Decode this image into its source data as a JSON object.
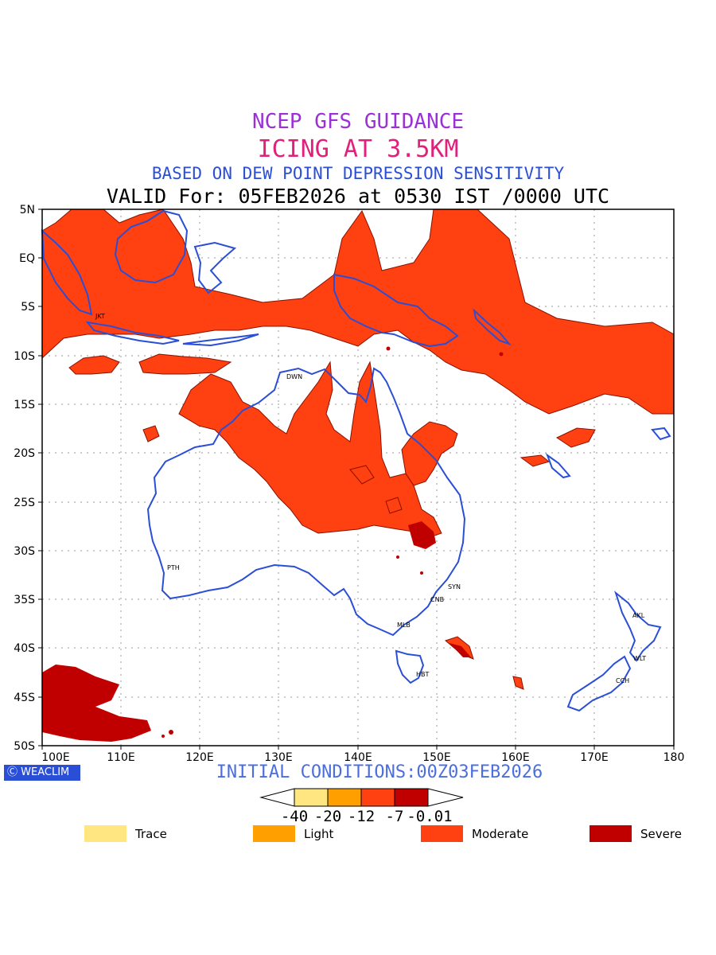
{
  "titles": {
    "line1": "NCEP GFS GUIDANCE",
    "line2": "ICING AT 3.5KM",
    "line3": "BASED ON DEW POINT DEPRESSION SENSITIVITY",
    "line4": "VALID For: 05FEB2026 at 0530 IST /0000 UTC",
    "line1_color": "#9b30d9",
    "line2_color": "#e0207a",
    "line3_color": "#2a4fd6"
  },
  "axes": {
    "lat_labels": [
      "5N",
      "EQ",
      "5S",
      "10S",
      "15S",
      "20S",
      "25S",
      "30S",
      "35S",
      "40S",
      "45S",
      "50S"
    ],
    "lon_labels": [
      "100E",
      "110E",
      "120E",
      "130E",
      "140E",
      "150E",
      "160E",
      "170E",
      "180"
    ]
  },
  "cities": [
    "JKT",
    "DWN",
    "PTH",
    "SYN",
    "CNB",
    "MLB",
    "HBT",
    "AKL",
    "WLT",
    "CCH"
  ],
  "footer": {
    "logo": "WEACLIM",
    "initial_conditions": "INITIAL CONDITIONS:00Z03FEB2026",
    "init_color": "#4a6ee0"
  },
  "colorbar": {
    "ticks": [
      "-40",
      "-20",
      "-12",
      "-7",
      "-0.01"
    ],
    "colors": [
      "#ffe680",
      "#ffa000",
      "#ff4010",
      "#c00000"
    ]
  },
  "legend": [
    {
      "label": "Trace",
      "color": "#ffe680"
    },
    {
      "label": "Light",
      "color": "#ffa000"
    },
    {
      "label": "Moderate",
      "color": "#ff4010"
    },
    {
      "label": "Severe",
      "color": "#c00000"
    }
  ],
  "colors": {
    "moderate_fill": "#ff4010",
    "moderate_edge": "#8a1000",
    "severe_fill": "#c00000",
    "coast": "#2a4fd6",
    "grid": "#999999"
  }
}
